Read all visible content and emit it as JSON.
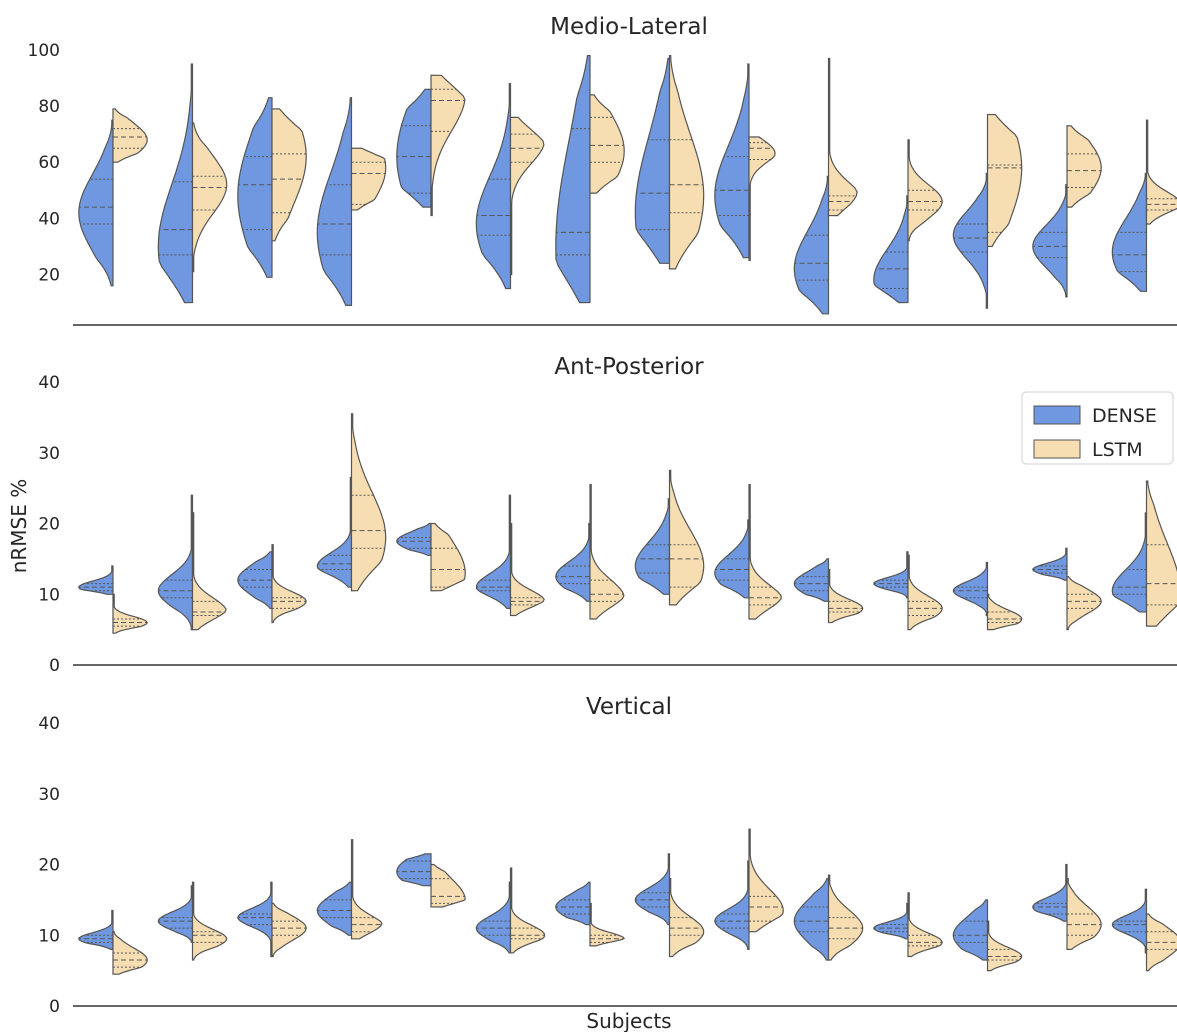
{
  "chart_data": {
    "type": "split-violin",
    "xlabel": "Subjects",
    "ylabel": "nRMSE %",
    "colors": {
      "DENSE": "#6f98e0",
      "LSTM": "#f7deb2"
    },
    "legend": {
      "placement": "top-right",
      "entries": [
        "DENSE",
        "LSTM"
      ]
    },
    "panels": [
      {
        "title": "Medio-Lateral",
        "ylim": [
          2,
          100
        ],
        "yticks": [
          20,
          40,
          60,
          80,
          100
        ],
        "series": [
          {
            "name": "DENSE",
            "violins": [
              {
                "min": 16,
                "max": 75,
                "q1": 38,
                "median": 44,
                "q3": 54,
                "mode": 42
              },
              {
                "min": 10,
                "max": 95,
                "q1": 27,
                "median": 36,
                "q3": 53,
                "mode": 30
              },
              {
                "min": 19,
                "max": 83,
                "q1": 36,
                "median": 52,
                "q3": 62,
                "mode": 48
              },
              {
                "min": 9,
                "max": 83,
                "q1": 27,
                "median": 38,
                "q3": 52,
                "mode": 35
              },
              {
                "min": 44,
                "max": 86,
                "q1": 49,
                "median": 62,
                "q3": 73,
                "mode": 62
              },
              {
                "min": 15,
                "max": 88,
                "q1": 34,
                "median": 41,
                "q3": 54,
                "mode": 38
              },
              {
                "min": 10,
                "max": 98,
                "q1": 27,
                "median": 35,
                "q3": 72,
                "mode": 30
              },
              {
                "min": 24,
                "max": 97,
                "q1": 36,
                "median": 49,
                "q3": 68,
                "mode": 42
              },
              {
                "min": 26,
                "max": 95,
                "q1": 41,
                "median": 50,
                "q3": 62,
                "mode": 48
              },
              {
                "min": 6,
                "max": 55,
                "q1": 18,
                "median": 24,
                "q3": 34,
                "mode": 22
              },
              {
                "min": 10,
                "max": 48,
                "q1": 15,
                "median": 22,
                "q3": 28,
                "mode": 18
              },
              {
                "min": 8,
                "max": 56,
                "q1": 28,
                "median": 33,
                "q3": 38,
                "mode": 34
              },
              {
                "min": 12,
                "max": 52,
                "q1": 26,
                "median": 30,
                "q3": 35,
                "mode": 30
              },
              {
                "min": 14,
                "max": 56,
                "q1": 21,
                "median": 27,
                "q3": 35,
                "mode": 28
              }
            ]
          },
          {
            "name": "LSTM",
            "violins": [
              {
                "min": 60,
                "max": 79,
                "q1": 65,
                "median": 69,
                "q3": 72,
                "mode": 68
              },
              {
                "min": 21,
                "max": 74,
                "q1": 43,
                "median": 51,
                "q3": 55,
                "mode": 52
              },
              {
                "min": 32,
                "max": 79,
                "q1": 42,
                "median": 54,
                "q3": 63,
                "mode": 62
              },
              {
                "min": 43,
                "max": 65,
                "q1": 45,
                "median": 56,
                "q3": 60,
                "mode": 58
              },
              {
                "min": 41,
                "max": 91,
                "q1": 71,
                "median": 82,
                "q3": 86,
                "mode": 84
              },
              {
                "min": 20,
                "max": 76,
                "q1": 60,
                "median": 65,
                "q3": 70,
                "mode": 68
              },
              {
                "min": 49,
                "max": 84,
                "q1": 60,
                "median": 66,
                "q3": 76,
                "mode": 64
              },
              {
                "min": 22,
                "max": 98,
                "q1": 42,
                "median": 52,
                "q3": 68,
                "mode": 48
              },
              {
                "min": 25,
                "max": 69,
                "q1": 61,
                "median": 65,
                "q3": 67,
                "mode": 66
              },
              {
                "min": 41,
                "max": 97,
                "q1": 43,
                "median": 46,
                "q3": 48,
                "mode": 46
              },
              {
                "min": 32,
                "max": 68,
                "q1": 43,
                "median": 46,
                "q3": 50,
                "mode": 46
              },
              {
                "min": 30,
                "max": 77,
                "q1": 35,
                "median": 58,
                "q3": 59,
                "mode": 58
              },
              {
                "min": 44,
                "max": 73,
                "q1": 51,
                "median": 57,
                "q3": 63,
                "mode": 58
              },
              {
                "min": 38,
                "max": 75,
                "q1": 43,
                "median": 45,
                "q3": 47,
                "mode": 45
              }
            ]
          }
        ]
      },
      {
        "title": "Ant-Posterior",
        "ylim": [
          0,
          40
        ],
        "yticks": [
          0,
          10,
          20,
          30,
          40
        ],
        "series": [
          {
            "name": "DENSE",
            "violins": [
              {
                "min": 10,
                "max": 14,
                "q1": 10.5,
                "median": 11,
                "q3": 11.5,
                "mode": 11
              },
              {
                "min": 5,
                "max": 24,
                "q1": 9.5,
                "median": 10.5,
                "q3": 12,
                "mode": 10.5
              },
              {
                "min": 8,
                "max": 16,
                "q1": 11,
                "median": 12,
                "q3": 13.5,
                "mode": 12
              },
              {
                "min": 11,
                "max": 26.5,
                "q1": 13.5,
                "median": 14.3,
                "q3": 15.5,
                "mode": 14
              },
              {
                "min": 15.5,
                "max": 20,
                "q1": 16.5,
                "median": 17.5,
                "q3": 18,
                "mode": 17.5
              },
              {
                "min": 8,
                "max": 24,
                "q1": 10.5,
                "median": 11,
                "q3": 12,
                "mode": 11
              },
              {
                "min": 9,
                "max": 20,
                "q1": 11.5,
                "median": 12.5,
                "q3": 14,
                "mode": 12.5
              },
              {
                "min": 10,
                "max": 23.5,
                "q1": 13,
                "median": 15,
                "q3": 17,
                "mode": 14
              },
              {
                "min": 9.5,
                "max": 20.5,
                "q1": 12,
                "median": 13.5,
                "q3": 15,
                "mode": 13
              },
              {
                "min": 9,
                "max": 15,
                "q1": 10.5,
                "median": 11.5,
                "q3": 12.5,
                "mode": 11.5
              },
              {
                "min": 9.5,
                "max": 16,
                "q1": 11,
                "median": 11.5,
                "q3": 12,
                "mode": 11.5
              },
              {
                "min": 7,
                "max": 14.5,
                "q1": 9.5,
                "median": 10.5,
                "q3": 11,
                "mode": 10.5
              },
              {
                "min": 12,
                "max": 16.5,
                "q1": 13,
                "median": 13.5,
                "q3": 14,
                "mode": 13.5
              },
              {
                "min": 7.5,
                "max": 21.5,
                "q1": 10,
                "median": 11,
                "q3": 13.5,
                "mode": 10.5
              }
            ]
          },
          {
            "name": "LSTM",
            "violins": [
              {
                "min": 4.5,
                "max": 10,
                "q1": 5.5,
                "median": 6,
                "q3": 6.5,
                "mode": 6
              },
              {
                "min": 5,
                "max": 21.5,
                "q1": 7,
                "median": 7.5,
                "q3": 9,
                "mode": 7.5
              },
              {
                "min": 6,
                "max": 17,
                "q1": 8,
                "median": 9,
                "q3": 9.5,
                "mode": 9
              },
              {
                "min": 10.5,
                "max": 35.5,
                "q1": 16.5,
                "median": 19,
                "q3": 24,
                "mode": 18
              },
              {
                "min": 10.5,
                "max": 20,
                "q1": 11,
                "median": 13.5,
                "q3": 16.5,
                "mode": 13
              },
              {
                "min": 7,
                "max": 20,
                "q1": 8.5,
                "median": 9,
                "q3": 9.5,
                "mode": 9
              },
              {
                "min": 6.5,
                "max": 25.5,
                "q1": 9,
                "median": 10,
                "q3": 12,
                "mode": 9.5
              },
              {
                "min": 8.5,
                "max": 27.5,
                "q1": 11,
                "median": 15,
                "q3": 17,
                "mode": 14
              },
              {
                "min": 6.5,
                "max": 25.5,
                "q1": 8.5,
                "median": 9.5,
                "q3": 11,
                "mode": 9
              },
              {
                "min": 6,
                "max": 13.5,
                "q1": 7.5,
                "median": 8,
                "q3": 9,
                "mode": 8
              },
              {
                "min": 5,
                "max": 15.5,
                "q1": 7,
                "median": 8,
                "q3": 9,
                "mode": 8
              },
              {
                "min": 5,
                "max": 10,
                "q1": 6,
                "median": 6.5,
                "q3": 7.5,
                "mode": 6.5
              },
              {
                "min": 5,
                "max": 12.5,
                "q1": 8,
                "median": 9,
                "q3": 10,
                "mode": 9
              },
              {
                "min": 5.5,
                "max": 26,
                "q1": 8.5,
                "median": 11.5,
                "q3": 17,
                "mode": 10
              }
            ]
          }
        ]
      },
      {
        "title": "Vertical",
        "ylim": [
          0,
          40
        ],
        "yticks": [
          0,
          10,
          20,
          30,
          40
        ],
        "series": [
          {
            "name": "DENSE",
            "violins": [
              {
                "min": 8,
                "max": 13.5,
                "q1": 9,
                "median": 9.5,
                "q3": 10,
                "mode": 9.5
              },
              {
                "min": 9,
                "max": 17,
                "q1": 11,
                "median": 12,
                "q3": 12.5,
                "mode": 12
              },
              {
                "min": 7,
                "max": 17.5,
                "q1": 11.5,
                "median": 12.5,
                "q3": 13,
                "mode": 12.5
              },
              {
                "min": 10,
                "max": 17.5,
                "q1": 12.5,
                "median": 13.5,
                "q3": 15,
                "mode": 13.5
              },
              {
                "min": 17,
                "max": 21.5,
                "q1": 18,
                "median": 19,
                "q3": 20.5,
                "mode": 19
              },
              {
                "min": 7.5,
                "max": 17.5,
                "q1": 10,
                "median": 11,
                "q3": 12,
                "mode": 11
              },
              {
                "min": 11.5,
                "max": 17.5,
                "q1": 13,
                "median": 14,
                "q3": 15,
                "mode": 14
              },
              {
                "min": 11.5,
                "max": 21.5,
                "q1": 14,
                "median": 15,
                "q3": 16,
                "mode": 15
              },
              {
                "min": 8,
                "max": 20.5,
                "q1": 11,
                "median": 12,
                "q3": 13,
                "mode": 12
              },
              {
                "min": 6.5,
                "max": 18,
                "q1": 10.5,
                "median": 12,
                "q3": 14,
                "mode": 12
              },
              {
                "min": 9.5,
                "max": 14.5,
                "q1": 10.5,
                "median": 11,
                "q3": 11.5,
                "mode": 11
              },
              {
                "min": 6.5,
                "max": 15,
                "q1": 9,
                "median": 10,
                "q3": 12,
                "mode": 10
              },
              {
                "min": 12,
                "max": 20,
                "q1": 13,
                "median": 14,
                "q3": 14.5,
                "mode": 14
              },
              {
                "min": 7.5,
                "max": 16.5,
                "q1": 10.5,
                "median": 11.5,
                "q3": 12,
                "mode": 11.5
              }
            ]
          },
          {
            "name": "LSTM",
            "violins": [
              {
                "min": 4.5,
                "max": 10.5,
                "q1": 5.5,
                "median": 6.5,
                "q3": 7.5,
                "mode": 6.5
              },
              {
                "min": 6.5,
                "max": 17.5,
                "q1": 9,
                "median": 10,
                "q3": 10.5,
                "mode": 9.5
              },
              {
                "min": 7,
                "max": 14.5,
                "q1": 10,
                "median": 11,
                "q3": 12,
                "mode": 11
              },
              {
                "min": 9.5,
                "max": 23.5,
                "q1": 10.5,
                "median": 11.5,
                "q3": 12.5,
                "mode": 11
              },
              {
                "min": 14,
                "max": 20,
                "q1": 14.5,
                "median": 15.5,
                "q3": 18,
                "mode": 15
              },
              {
                "min": 7.5,
                "max": 19.5,
                "q1": 9.5,
                "median": 10,
                "q3": 11,
                "mode": 10
              },
              {
                "min": 8.5,
                "max": 14.5,
                "q1": 9,
                "median": 9.5,
                "q3": 10,
                "mode": 9.5
              },
              {
                "min": 7,
                "max": 18,
                "q1": 10,
                "median": 11,
                "q3": 12.5,
                "mode": 10.5
              },
              {
                "min": 10.5,
                "max": 25,
                "q1": 12,
                "median": 14,
                "q3": 15.5,
                "mode": 13.5
              },
              {
                "min": 6.5,
                "max": 18.5,
                "q1": 9.5,
                "median": 11,
                "q3": 12.5,
                "mode": 11
              },
              {
                "min": 7,
                "max": 16,
                "q1": 8.5,
                "median": 9,
                "q3": 10,
                "mode": 9
              },
              {
                "min": 5,
                "max": 12,
                "q1": 6.5,
                "median": 7,
                "q3": 8,
                "mode": 7
              },
              {
                "min": 8,
                "max": 18,
                "q1": 10,
                "median": 11.5,
                "q3": 13,
                "mode": 11.5
              },
              {
                "min": 5,
                "max": 13,
                "q1": 8,
                "median": 9,
                "q3": 10.5,
                "mode": 9
              }
            ]
          }
        ]
      }
    ]
  }
}
